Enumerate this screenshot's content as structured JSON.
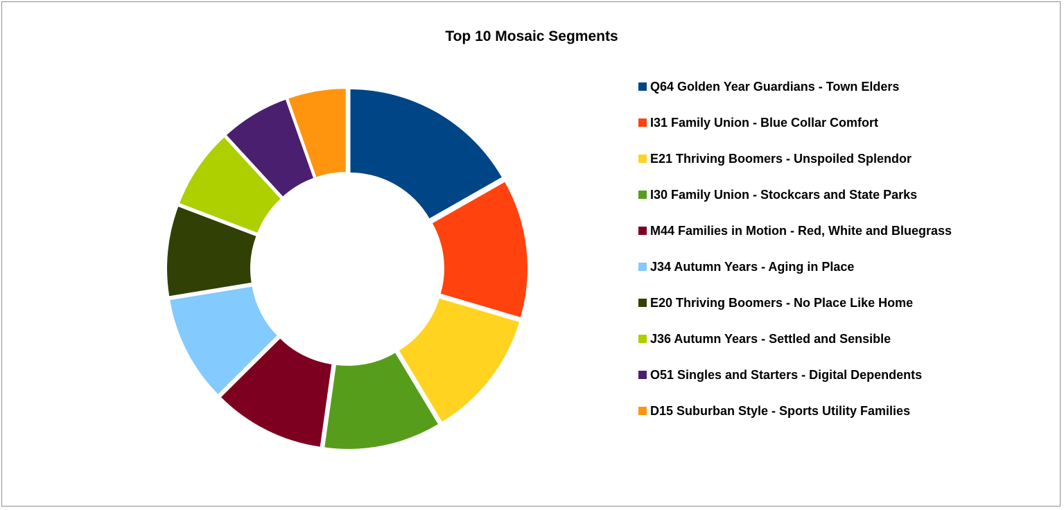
{
  "chart_data": {
    "type": "pie",
    "donut": true,
    "title": "Top 10 Mosaic Segments",
    "legend_position": "right",
    "categories": [
      "Q64 Golden Year Guardians - Town Elders",
      "I31 Family Union - Blue Collar Comfort",
      "E21 Thriving Boomers - Unspoiled Splendor",
      "I30 Family Union - Stockcars and State Parks",
      "M44 Families in Motion - Red, White and Bluegrass",
      "J34 Autumn Years - Aging in Place",
      "E20 Thriving Boomers - No Place Like Home",
      "J36 Autumn Years - Settled and Sensible",
      "O51 Singles and Starters - Digital Dependents",
      "D15 Suburban Style - Sports Utility Families"
    ],
    "values": [
      17.0,
      13.0,
      12.0,
      11.0,
      10.5,
      10.0,
      8.5,
      7.5,
      6.5,
      5.5
    ],
    "colors": [
      "#004586",
      "#ff420e",
      "#ffd320",
      "#579d1c",
      "#7e0021",
      "#83caff",
      "#314004",
      "#aecf00",
      "#4b1f6f",
      "#ff950e"
    ]
  }
}
